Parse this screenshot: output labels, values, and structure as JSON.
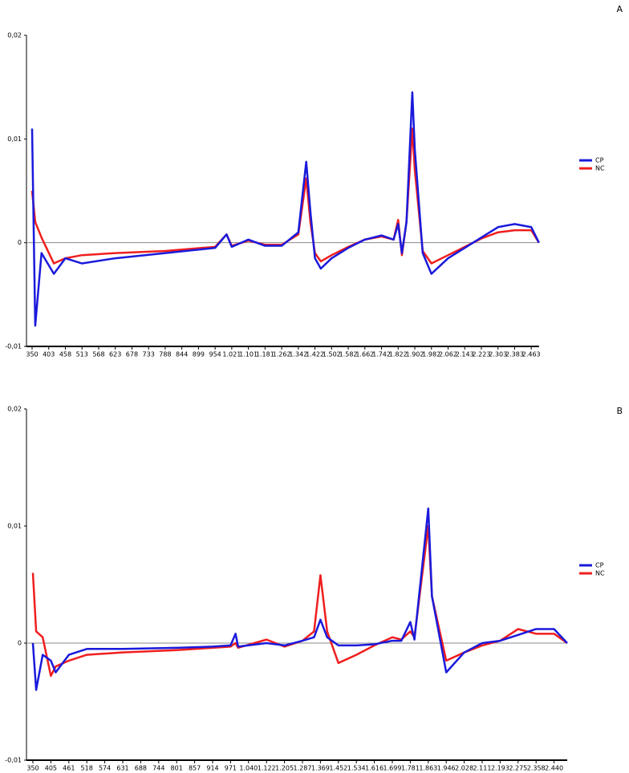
{
  "chart_data": [
    {
      "type": "line",
      "title": "A",
      "x": [
        350,
        360,
        380,
        420,
        458,
        513,
        623,
        788,
        954,
        1000,
        1021,
        1101,
        1181,
        1262,
        1342,
        1380,
        1400,
        1422,
        1450,
        1502,
        1582,
        1662,
        1742,
        1800,
        1822,
        1840,
        1862,
        1890,
        1902,
        1940,
        1982,
        2062,
        2143,
        2223,
        2303,
        2383,
        2463,
        2500
      ],
      "series": [
        {
          "name": "CP",
          "color": "#1a1adc",
          "values": [
            0.011,
            -0.008,
            -0.001,
            -0.003,
            -0.0015,
            -0.002,
            -0.0015,
            -0.001,
            -0.0005,
            0.0008,
            -0.0004,
            0.0003,
            -0.0003,
            -0.0003,
            0.001,
            0.0078,
            0.003,
            -0.0015,
            -0.0025,
            -0.0015,
            -0.0005,
            0.0003,
            0.0007,
            0.0003,
            0.0018,
            -0.001,
            0.002,
            0.0145,
            0.009,
            -0.001,
            -0.003,
            -0.0015,
            -0.0005,
            0.0005,
            0.0015,
            0.0018,
            0.0015,
            0
          ]
        },
        {
          "name": "NC",
          "color": "#f01e1e",
          "values": [
            0.005,
            0.002,
            0.0005,
            -0.002,
            -0.0015,
            -0.0012,
            -0.001,
            -0.0008,
            -0.0004,
            0.0008,
            -0.0003,
            0.0002,
            -0.0002,
            -0.0002,
            0.0008,
            0.0062,
            0.002,
            -0.001,
            -0.0018,
            -0.0012,
            -0.0004,
            0.0003,
            0.0006,
            0.0003,
            0.0022,
            -0.0012,
            0.002,
            0.011,
            0.007,
            -0.0008,
            -0.002,
            -0.0012,
            -0.0004,
            0.0004,
            0.001,
            0.0012,
            0.0012,
            0
          ]
        }
      ],
      "xlim": [
        350,
        2500
      ],
      "xticks": [
        350,
        403,
        458,
        513,
        568,
        623,
        678,
        733,
        788,
        844,
        899,
        954,
        {
          "value": 1021,
          "label": "1.021"
        },
        {
          "value": 1101,
          "label": "1.101"
        },
        {
          "value": 1181,
          "label": "1.181"
        },
        {
          "value": 1262,
          "label": "1.262"
        },
        {
          "value": 1342,
          "label": "1.342"
        },
        {
          "value": 1422,
          "label": "1.422"
        },
        {
          "value": 1502,
          "label": "1.502"
        },
        {
          "value": 1582,
          "label": "1.582"
        },
        {
          "value": 1662,
          "label": "1.662"
        },
        {
          "value": 1742,
          "label": "1.742"
        },
        {
          "value": 1822,
          "label": "1.822"
        },
        {
          "value": 1902,
          "label": "1.902"
        },
        {
          "value": 1982,
          "label": "1.982"
        },
        {
          "value": 2062,
          "label": "2.062"
        },
        {
          "value": 2143,
          "label": "2.143"
        },
        {
          "value": 2223,
          "label": "2.223"
        },
        {
          "value": 2303,
          "label": "2.303"
        },
        {
          "value": 2383,
          "label": "2.383"
        },
        {
          "value": 2463,
          "label": "2.463"
        }
      ],
      "ylim": [
        -0.01,
        0.02
      ],
      "yticks": [
        {
          "value": 0.02,
          "label": "0,02"
        },
        {
          "value": 0.01,
          "label": "0,01"
        },
        0,
        {
          "value": -0.01,
          "label": "-0,01"
        }
      ],
      "legend": "right"
    },
    {
      "type": "line",
      "title": "B",
      "x": [
        350,
        360,
        380,
        405,
        420,
        461,
        518,
        631,
        801,
        914,
        971,
        990,
        1000,
        1122,
        1205,
        1287,
        1340,
        1369,
        1400,
        1452,
        1534,
        1616,
        1699,
        1740,
        1781,
        1800,
        1863,
        1880,
        1946,
        2028,
        2111,
        2193,
        2275,
        2358,
        2440,
        2500
      ],
      "series": [
        {
          "name": "CP",
          "color": "#1a1adc",
          "values": [
            0,
            -0.004,
            -0.001,
            -0.0015,
            -0.0025,
            -0.001,
            -0.0005,
            -0.0005,
            -0.0004,
            -0.0003,
            -0.0002,
            0.0008,
            -0.0003,
            0,
            -0.0002,
            0.0002,
            0.0005,
            0.002,
            0.0005,
            -0.0002,
            -0.0002,
            -0.0001,
            0.0002,
            0.0002,
            0.0018,
            0.0003,
            0.0115,
            0.004,
            -0.0025,
            -0.0008,
            0,
            0.0002,
            0.0007,
            0.0012,
            0.0012,
            0
          ]
        },
        {
          "name": "NC",
          "color": "#f01e1e",
          "values": [
            0.006,
            0.001,
            0.0005,
            -0.0028,
            -0.002,
            -0.0015,
            -0.001,
            -0.0008,
            -0.0006,
            -0.0004,
            -0.0003,
            0,
            -0.0004,
            0.0003,
            -0.0003,
            0.0002,
            0.001,
            0.0058,
            0.001,
            -0.0017,
            -0.001,
            -0.0002,
            0.0005,
            0.0003,
            0.001,
            0.0005,
            0.01,
            0.004,
            -0.0015,
            -0.0008,
            -0.0002,
            0.0002,
            0.0012,
            0.0008,
            0.0008,
            0
          ]
        }
      ],
      "xlim": [
        350,
        2500
      ],
      "xticks": [
        350,
        405,
        461,
        518,
        574,
        631,
        688,
        744,
        801,
        857,
        914,
        971,
        {
          "value": 1040,
          "label": "1.040"
        },
        {
          "value": 1122,
          "label": "1.122"
        },
        {
          "value": 1205,
          "label": "1.205"
        },
        {
          "value": 1287,
          "label": "1.287"
        },
        {
          "value": 1369,
          "label": "1.369"
        },
        {
          "value": 1452,
          "label": "1.452"
        },
        {
          "value": 1534,
          "label": "1.534"
        },
        {
          "value": 1616,
          "label": "1.616"
        },
        {
          "value": 1699,
          "label": "1.699"
        },
        {
          "value": 1781,
          "label": "1.781"
        },
        {
          "value": 1863,
          "label": "1.863"
        },
        {
          "value": 1946,
          "label": "1.946"
        },
        {
          "value": 2028,
          "label": "2.028"
        },
        {
          "value": 2111,
          "label": "2.111"
        },
        {
          "value": 2193,
          "label": "2.193"
        },
        {
          "value": 2275,
          "label": "2.275"
        },
        {
          "value": 2358,
          "label": "2.358"
        },
        {
          "value": 2440,
          "label": "2.440"
        }
      ],
      "ylim": [
        -0.01,
        0.02
      ],
      "yticks": [
        {
          "value": 0.02,
          "label": "0,02"
        },
        {
          "value": 0.01,
          "label": "0,01"
        },
        0,
        {
          "value": -0.01,
          "label": "-0,01"
        }
      ],
      "legend": "right"
    }
  ]
}
